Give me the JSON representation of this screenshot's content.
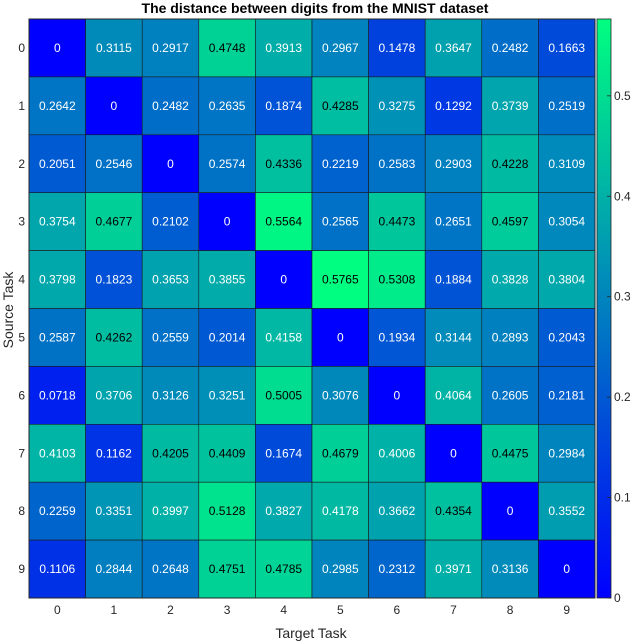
{
  "chart_data": {
    "type": "heatmap",
    "title": "The distance between digits from the MNIST dataset",
    "xlabel": "Target Task",
    "ylabel": "Source Task",
    "x_categories": [
      "0",
      "1",
      "2",
      "3",
      "4",
      "5",
      "6",
      "7",
      "8",
      "9"
    ],
    "y_categories": [
      "0",
      "1",
      "2",
      "3",
      "4",
      "5",
      "6",
      "7",
      "8",
      "9"
    ],
    "values": [
      [
        "0",
        "0.3115",
        "0.2917",
        "0.4748",
        "0.3913",
        "0.2967",
        "0.1478",
        "0.3647",
        "0.2482",
        "0.1663"
      ],
      [
        "0.2642",
        "0",
        "0.2482",
        "0.2635",
        "0.1874",
        "0.4285",
        "0.3275",
        "0.1292",
        "0.3739",
        "0.2519"
      ],
      [
        "0.2051",
        "0.2546",
        "0",
        "0.2574",
        "0.4336",
        "0.2219",
        "0.2583",
        "0.2903",
        "0.4228",
        "0.3109"
      ],
      [
        "0.3754",
        "0.4677",
        "0.2102",
        "0",
        "0.5564",
        "0.2565",
        "0.4473",
        "0.2651",
        "0.4597",
        "0.3054"
      ],
      [
        "0.3798",
        "0.1823",
        "0.3653",
        "0.3855",
        "0",
        "0.5765",
        "0.5308",
        "0.1884",
        "0.3828",
        "0.3804"
      ],
      [
        "0.2587",
        "0.4262",
        "0.2559",
        "0.2014",
        "0.4158",
        "0",
        "0.1934",
        "0.3144",
        "0.2893",
        "0.2043"
      ],
      [
        "0.0718",
        "0.3706",
        "0.3126",
        "0.3251",
        "0.5005",
        "0.3076",
        "0",
        "0.4064",
        "0.2605",
        "0.2181"
      ],
      [
        "0.4103",
        "0.1162",
        "0.4205",
        "0.4409",
        "0.1674",
        "0.4679",
        "0.4006",
        "0",
        "0.4475",
        "0.2984"
      ],
      [
        "0.2259",
        "0.3351",
        "0.3997",
        "0.5128",
        "0.3827",
        "0.4178",
        "0.3662",
        "0.4354",
        "0",
        "0.3552"
      ],
      [
        "0.1106",
        "0.2844",
        "0.2648",
        "0.4751",
        "0.4785",
        "0.2985",
        "0.2312",
        "0.3971",
        "0.3136",
        "0"
      ]
    ],
    "colorbar": {
      "range": [
        0,
        0.5765
      ],
      "ticks": [
        "0",
        "0.1",
        "0.2",
        "0.3",
        "0.4",
        "0.5"
      ],
      "colormap": "winter",
      "low_color": "#0000ff",
      "high_color": "#00ff80"
    },
    "grid": false
  }
}
